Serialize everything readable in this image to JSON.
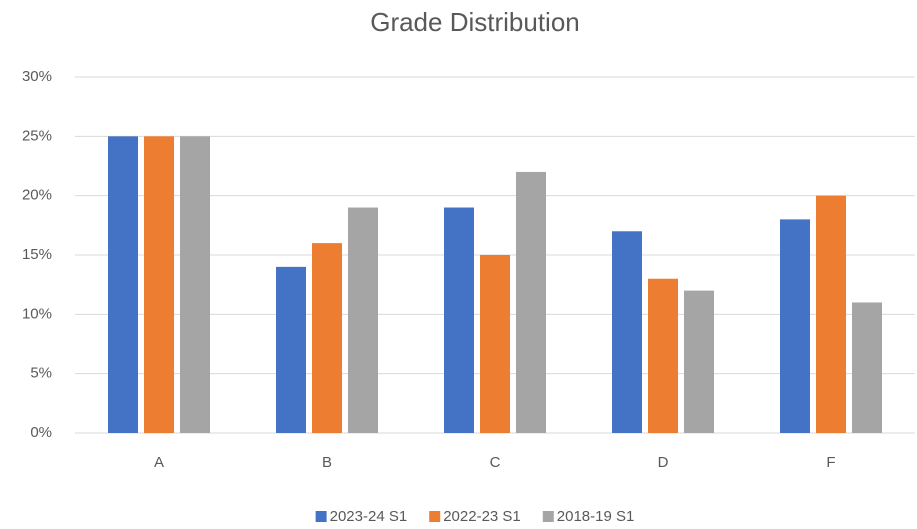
{
  "chart_data": {
    "type": "bar",
    "title": "Grade Distribution",
    "categories": [
      "A",
      "B",
      "C",
      "D",
      "F"
    ],
    "series": [
      {
        "name": "2023-24 S1",
        "color": "#4472c4",
        "values": [
          25,
          14,
          19,
          17,
          18
        ]
      },
      {
        "name": "2022-23 S1",
        "color": "#ed7d31",
        "values": [
          25,
          16,
          15,
          13,
          20
        ]
      },
      {
        "name": "2018-19 S1",
        "color": "#a5a5a5",
        "values": [
          25,
          19,
          22,
          12,
          11
        ]
      }
    ],
    "ylim": [
      0,
      30
    ],
    "yticks": [
      {
        "value": 0,
        "label": "0%"
      },
      {
        "value": 5,
        "label": "5%"
      },
      {
        "value": 10,
        "label": "10%"
      },
      {
        "value": 15,
        "label": "15%"
      },
      {
        "value": 20,
        "label": "20%"
      },
      {
        "value": 25,
        "label": "25%"
      },
      {
        "value": 30,
        "label": "30%"
      }
    ],
    "grid": true,
    "legend": "bottom"
  }
}
